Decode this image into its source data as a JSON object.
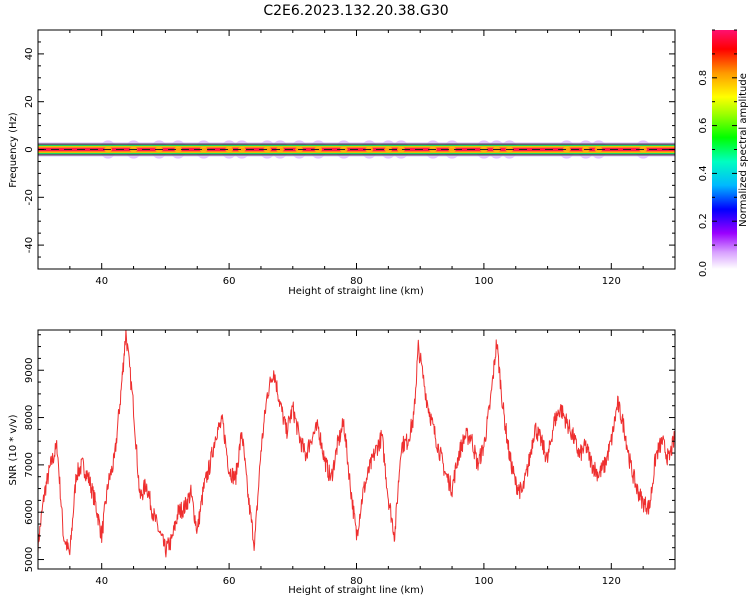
{
  "title": "C2E6.2023.132.20.38.G30",
  "chart_data": [
    {
      "type": "heatmap",
      "xlabel": "Height of straight line (km)",
      "ylabel": "Frequency (Hz)",
      "xlim": [
        30,
        130
      ],
      "ylim": [
        -50,
        50
      ],
      "xticks": [
        40,
        60,
        80,
        100,
        120
      ],
      "yticks": [
        -40,
        -20,
        0,
        20,
        40
      ],
      "colorbar": {
        "label": "Normalized spectral amplitude",
        "range": [
          0,
          1
        ],
        "ticks": [
          0.0,
          0.2,
          0.4,
          0.6,
          0.8
        ]
      },
      "band": {
        "center_frequency": 0,
        "core_halfwidth": 1,
        "halo_halfwidth": 3,
        "blob_heights": [
          41,
          45,
          49,
          52,
          56,
          60,
          62,
          66,
          68,
          71,
          74,
          78,
          82,
          85,
          87,
          92,
          95,
          100,
          102,
          104,
          113,
          116,
          118,
          125
        ]
      }
    },
    {
      "type": "line",
      "xlabel": "Height of straight line (km)",
      "ylabel": "SNR (10 * v/v)",
      "xlim": [
        30,
        130
      ],
      "ylim": [
        4800,
        9850
      ],
      "xticks": [
        40,
        60,
        80,
        100,
        120
      ],
      "yticks": [
        5000,
        6000,
        7000,
        8000,
        9000
      ],
      "color": "#ee2f2f",
      "x": [
        30,
        31,
        32,
        33,
        34,
        35,
        36,
        37,
        38,
        39,
        40,
        41,
        42,
        43,
        43.8,
        45,
        46,
        47,
        48,
        49,
        50,
        51,
        52,
        53,
        54,
        55,
        56,
        57,
        58,
        59,
        60,
        61,
        62,
        63,
        64,
        65,
        66,
        67,
        68,
        69,
        70,
        71,
        72,
        73,
        74,
        75,
        76,
        77,
        78,
        79,
        80,
        81,
        82,
        83,
        84,
        85,
        86,
        87,
        88,
        89,
        89.7,
        91,
        92,
        93,
        94,
        95,
        96,
        97,
        98,
        99,
        100,
        101,
        102,
        103,
        104,
        105,
        106,
        107,
        108,
        109,
        110,
        111,
        112,
        113,
        114,
        115,
        116,
        117,
        118,
        119,
        120,
        121,
        122,
        123,
        124,
        125,
        126,
        127,
        128,
        129,
        130
      ],
      "y": [
        5300,
        6400,
        7000,
        7400,
        5500,
        5100,
        6800,
        7000,
        6700,
        6200,
        5500,
        6600,
        7100,
        8500,
        9800,
        8200,
        6300,
        6600,
        6000,
        5600,
        5200,
        5400,
        6000,
        6100,
        6400,
        5600,
        6500,
        7000,
        7700,
        7900,
        6900,
        6700,
        7700,
        6300,
        5300,
        7300,
        8500,
        9000,
        8300,
        7700,
        8200,
        7600,
        7200,
        7600,
        7800,
        7100,
        6700,
        7400,
        7900,
        6600,
        5500,
        6400,
        6900,
        7300,
        7600,
        6300,
        5500,
        7400,
        7500,
        8000,
        9500,
        8400,
        7800,
        7300,
        6800,
        6500,
        7200,
        7600,
        7600,
        7000,
        7400,
        8300,
        9600,
        8200,
        7200,
        6600,
        6400,
        7000,
        7800,
        7500,
        7100,
        7900,
        8200,
        7900,
        7600,
        7200,
        7400,
        7000,
        6800,
        7000,
        7500,
        8300,
        7800,
        7000,
        6500,
        6200,
        6100,
        7200,
        7500,
        7100,
        7600
      ]
    }
  ]
}
